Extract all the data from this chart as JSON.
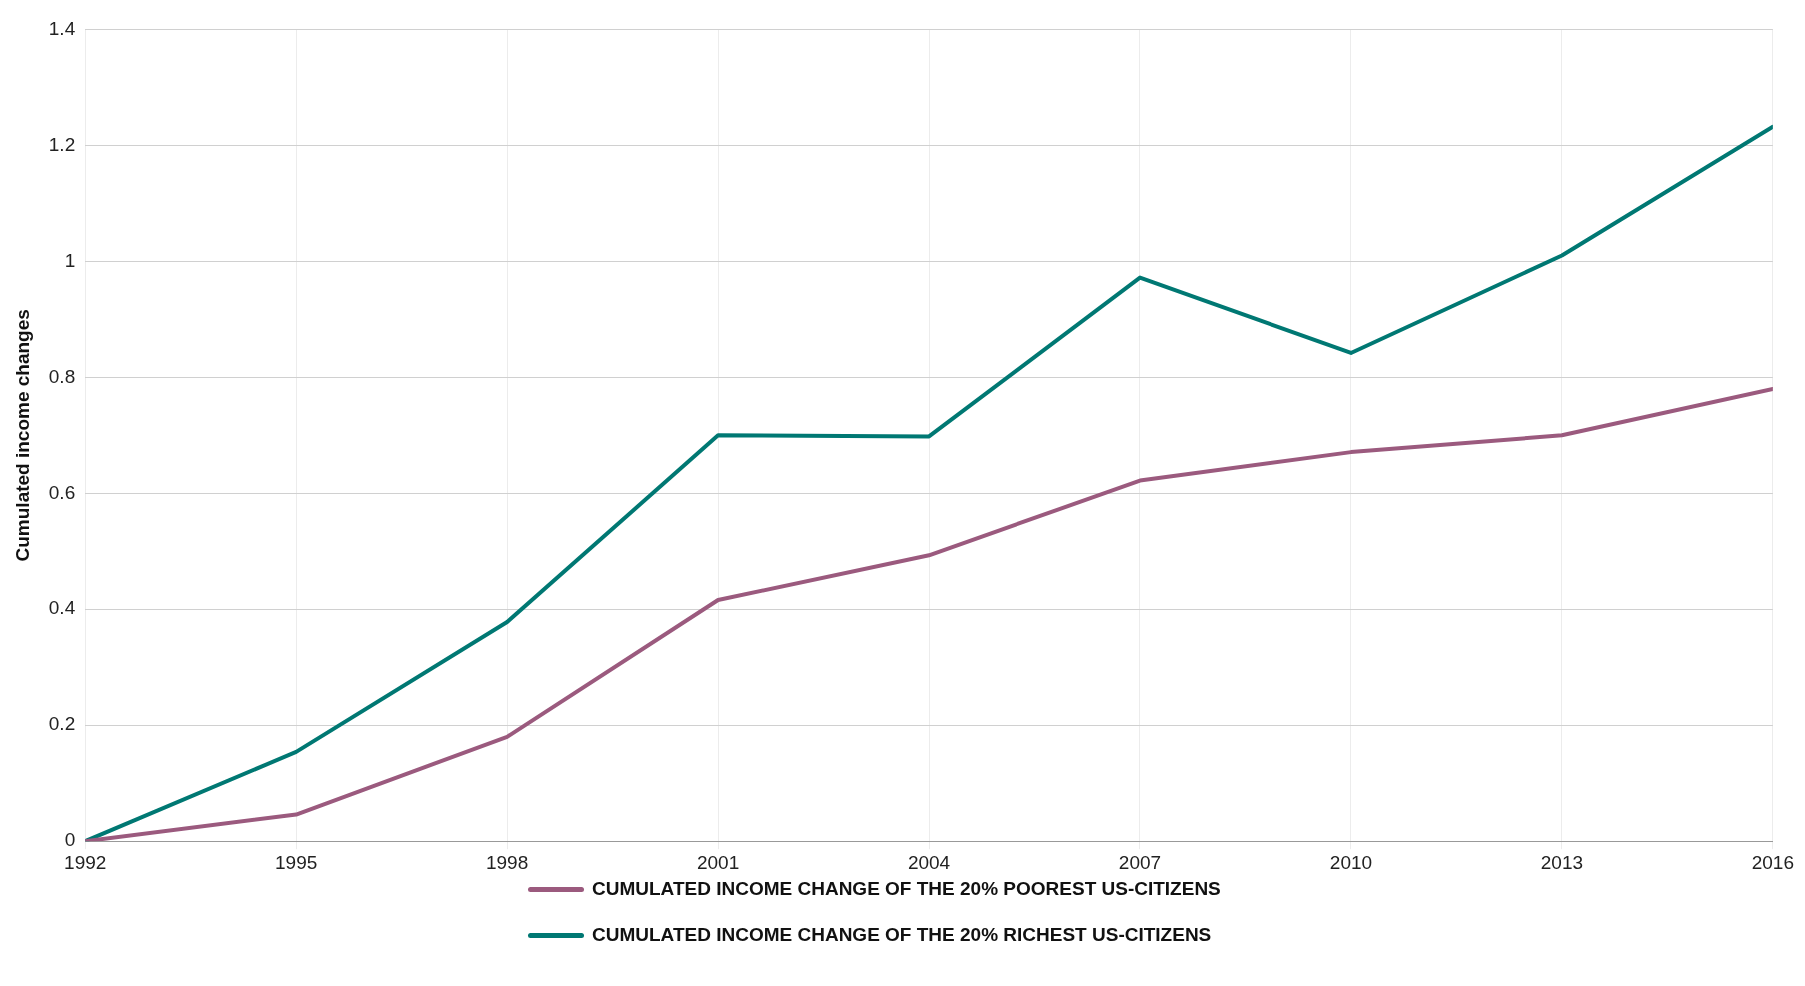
{
  "chart_data": {
    "type": "line",
    "ylabel": "Cumulated income changes",
    "x": [
      1992,
      1995,
      1998,
      2001,
      2004,
      2007,
      2010,
      2013,
      2016
    ],
    "xlim": [
      1992,
      2016
    ],
    "xticks": [
      1992,
      1995,
      1998,
      2001,
      2004,
      2007,
      2010,
      2013,
      2016
    ],
    "ylim": [
      0,
      1.4
    ],
    "yticks": [
      0,
      0.2,
      0.4,
      0.6,
      0.8,
      1,
      1.2,
      1.4
    ],
    "grid": true,
    "legend": "bottom",
    "marker": "none",
    "line_style": "solid",
    "series": [
      {
        "name": "CUMULATED INCOME CHANGE OF THE 20% POOREST US-CITIZENS",
        "color": "#9b5a7e",
        "values": [
          0,
          0.046,
          0.18,
          0.416,
          0.493,
          0.622,
          0.671,
          0.7,
          0.78
        ]
      },
      {
        "name": "CUMULATED INCOME CHANGE OF THE 20% RICHEST US-CITIZENS",
        "color": "#007873",
        "values": [
          0,
          0.154,
          0.378,
          0.7,
          0.698,
          0.972,
          0.842,
          1.01,
          1.232
        ]
      }
    ]
  }
}
